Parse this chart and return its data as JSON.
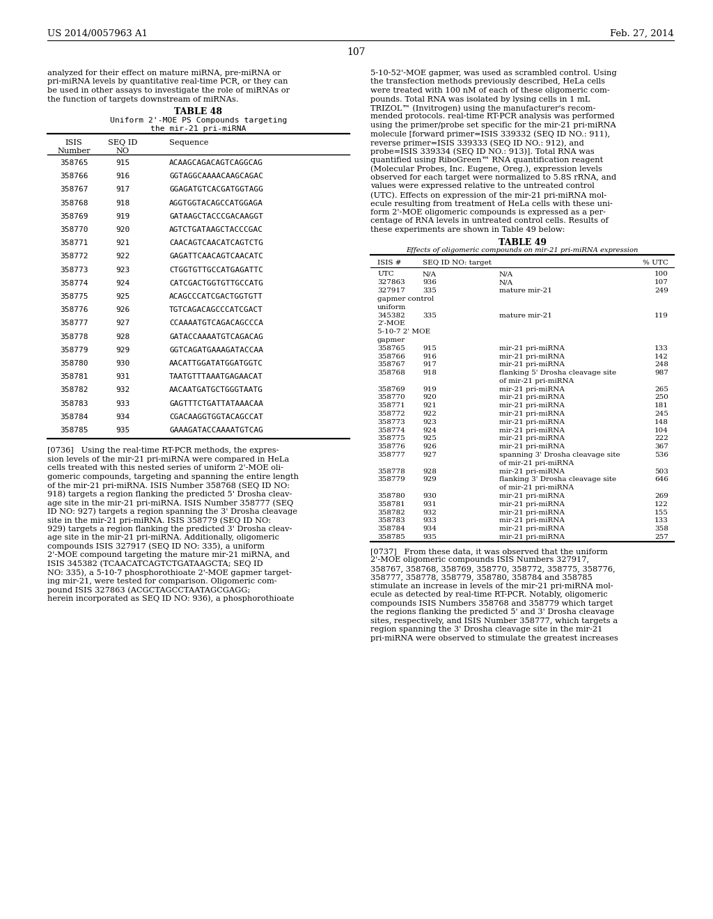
{
  "page_header_left": "US 2014/0057963 A1",
  "page_header_right": "Feb. 27, 2014",
  "page_number": "107",
  "left_top_para": "analyzed for their effect on mature miRNA, pre-miRNA or\npri-miRNA levels by quantitative real-time PCR, or they can\nbe used in other assays to investigate the role of miRNAs or\nthe function of targets downstream of miRNAs.",
  "table48_title": "TABLE 48",
  "table48_subtitle1": "Uniform 2'-MOE PS Compounds targeting",
  "table48_subtitle2": "the mir-21 pri-miRNA",
  "table48_col1_hdr1": "ISIS",
  "table48_col1_hdr2": "Number",
  "table48_col2_hdr1": "SEQ ID",
  "table48_col2_hdr2": "NO",
  "table48_col3_hdr": "Sequence",
  "table48_rows": [
    [
      "358765",
      "915",
      "ACAAGCAGACAGTCAGGCAG"
    ],
    [
      "358766",
      "916",
      "GGTAGGCAAAACAAGCAGAC"
    ],
    [
      "358767",
      "917",
      "GGAGATGTCACGATGGTAGG"
    ],
    [
      "358768",
      "918",
      "AGGTGGTACAGCCATGGAGA"
    ],
    [
      "358769",
      "919",
      "GATAAGCTACCCGACAAGGT"
    ],
    [
      "358770",
      "920",
      "AGTCTGATAAGCTACCCGAC"
    ],
    [
      "358771",
      "921",
      "CAACAGTCAACATCAGTCTG"
    ],
    [
      "358772",
      "922",
      "GAGATTCAACAGTCAACATC"
    ],
    [
      "358773",
      "923",
      "CTGGTGTTGCCATGAGATTC"
    ],
    [
      "358774",
      "924",
      "CATCGACTGGTGTTGCCATG"
    ],
    [
      "358775",
      "925",
      "ACAGCCCATCGACTGGTGTT"
    ],
    [
      "358776",
      "926",
      "TGTCAGACAGCCCATCGACT"
    ],
    [
      "358777",
      "927",
      "CCAAAATGTCAGACAGCCCA"
    ],
    [
      "358778",
      "928",
      "GATACCAAAATGTCAGACAG"
    ],
    [
      "358779",
      "929",
      "GGTCAGATGAAAGATACCAA"
    ],
    [
      "358780",
      "930",
      "AACATTGGATATGGATGGTC"
    ],
    [
      "358781",
      "931",
      "TAATGTTTAAATGAGAACAT"
    ],
    [
      "358782",
      "932",
      "AACAATGATGCTGGGTAATG"
    ],
    [
      "358783",
      "933",
      "GAGTTTCTGATTATAAACAA"
    ],
    [
      "358784",
      "934",
      "CGACAAGGTGGTACAGCCAT"
    ],
    [
      "358785",
      "935",
      "GAAAGATACCAAAATGTCAG"
    ]
  ],
  "left_para_0736_lines": [
    "[0736]   Using the real-time RT-PCR methods, the expres-",
    "sion levels of the mir-21 pri-miRNA were compared in HeLa",
    "cells treated with this nested series of uniform 2'-MOE oli-",
    "gomeric compounds, targeting and spanning the entire length",
    "of the mir-21 pri-miRNA. ISIS Number 358768 (SEQ ID NO:",
    "918) targets a region flanking the predicted 5' Drosha cleav-",
    "age site in the mir-21 pri-miRNA. ISIS Number 358777 (SEQ",
    "ID NO: 927) targets a region spanning the 3' Drosha cleavage",
    "site in the mir-21 pri-miRNA. ISIS 358779 (SEQ ID NO:",
    "929) targets a region flanking the predicted 3' Drosha cleav-",
    "age site in the mir-21 pri-miRNA. Additionally, oligomeric",
    "compounds ISIS 327917 (SEQ ID NO: 335), a uniform",
    "2'-MOE compound targeting the mature mir-21 miRNA, and",
    "ISIS 345382 (TCAACATCAGTCTGATAAGCTA; SEQ ID",
    "NO: 335), a 5-10-7 phosphorothioate 2'-MOE gapmer target-",
    "ing mir-21, were tested for comparison. Oligomeric com-",
    "pound ISIS 327863 (ACGCTAGCCTAATAGCGAGG;",
    "herein incorporated as SEQ ID NO: 936), a phosphorothioate"
  ],
  "right_top_para_lines": [
    "5-10-52'-MOE gapmer, was used as scrambled control. Using",
    "the transfection methods previously described, HeLa cells",
    "were treated with 100 nM of each of these oligomeric com-",
    "pounds. Total RNA was isolated by lysing cells in 1 mL",
    "TRIZOL™ (Invitrogen) using the manufacturer's recom-",
    "mended protocols. real-time RT-PCR analysis was performed",
    "using the primer/probe set specific for the mir-21 pri-miRNA",
    "molecule [forward primer=ISIS 339332 (SEQ ID NO.: 911),",
    "reverse primer=ISIS 339333 (SEQ ID NO.: 912), and",
    "probe=ISIS 339334 (SEQ ID NO.: 913)]. Total RNA was",
    "quantified using RiboGreen™ RNA quantification reagent",
    "(Molecular Probes, Inc. Eugene, Oreg.), expression levels",
    "observed for each target were normalized to 5.8S rRNA, and",
    "values were expressed relative to the untreated control",
    "(UTC). Effects on expression of the mir-21 pri-miRNA mol-",
    "ecule resulting from treatment of HeLa cells with these uni-",
    "form 2'-MOE oligomeric compounds is expressed as a per-",
    "centage of RNA levels in untreated control cells. Results of",
    "these experiments are shown in Table 49 below:"
  ],
  "table49_title": "TABLE 49",
  "table49_subtitle": "Effects of oligomeric compounds on mir-21 pri-miRNA expression",
  "table49_col_headers": [
    "ISIS #",
    "SEQ ID NO: target",
    "% UTC"
  ],
  "table49_rows": [
    [
      "UTC",
      "N/A",
      "N/A",
      "100"
    ],
    [
      "327863",
      "936",
      "N/A",
      "107"
    ],
    [
      "327917",
      "335",
      "mature mir-21",
      "249"
    ],
    [
      "gapmer control",
      "",
      "",
      ""
    ],
    [
      "uniform",
      "",
      "",
      ""
    ],
    [
      "345382",
      "335",
      "mature mir-21",
      "119"
    ],
    [
      "2'-MOE",
      "",
      "",
      ""
    ],
    [
      "5-10-7 2' MOE",
      "",
      "",
      ""
    ],
    [
      "gapmer",
      "",
      "",
      ""
    ],
    [
      "358765",
      "915",
      "mir-21 pri-miRNA",
      "133"
    ],
    [
      "358766",
      "916",
      "mir-21 pri-miRNA",
      "142"
    ],
    [
      "358767",
      "917",
      "mir-21 pri-miRNA",
      "248"
    ],
    [
      "358768",
      "918",
      "flanking 5' Drosha cleavage site",
      "987"
    ],
    [
      "",
      "",
      "of mir-21 pri-miRNA",
      ""
    ],
    [
      "358769",
      "919",
      "mir-21 pri-miRNA",
      "265"
    ],
    [
      "358770",
      "920",
      "mir-21 pri-miRNA",
      "250"
    ],
    [
      "358771",
      "921",
      "mir-21 pri-miRNA",
      "181"
    ],
    [
      "358772",
      "922",
      "mir-21 pri-miRNA",
      "245"
    ],
    [
      "358773",
      "923",
      "mir-21 pri-miRNA",
      "148"
    ],
    [
      "358774",
      "924",
      "mir-21 pri-miRNA",
      "104"
    ],
    [
      "358775",
      "925",
      "mir-21 pri-miRNA",
      "222"
    ],
    [
      "358776",
      "926",
      "mir-21 pri-miRNA",
      "367"
    ],
    [
      "358777",
      "927",
      "spanning 3' Drosha cleavage site",
      "536"
    ],
    [
      "",
      "",
      "of mir-21 pri-miRNA",
      ""
    ],
    [
      "358778",
      "928",
      "mir-21 pri-miRNA",
      "503"
    ],
    [
      "358779",
      "929",
      "flanking 3' Drosha cleavage site",
      "646"
    ],
    [
      "",
      "",
      "of mir-21 pri-miRNA",
      ""
    ],
    [
      "358780",
      "930",
      "mir-21 pri-miRNA",
      "269"
    ],
    [
      "358781",
      "931",
      "mir-21 pri-miRNA",
      "122"
    ],
    [
      "358782",
      "932",
      "mir-21 pri-miRNA",
      "155"
    ],
    [
      "358783",
      "933",
      "mir-21 pri-miRNA",
      "133"
    ],
    [
      "358784",
      "934",
      "mir-21 pri-miRNA",
      "358"
    ],
    [
      "358785",
      "935",
      "mir-21 pri-miRNA",
      "257"
    ]
  ],
  "right_para_0737_lines": [
    "[0737]   From these data, it was observed that the uniform",
    "2'-MOE oligomeric compounds ISIS Numbers 327917,",
    "358767, 358768, 358769, 358770, 358772, 358775, 358776,",
    "358777, 358778, 358779, 358780, 358784 and 358785",
    "stimulate an increase in levels of the mir-21 pri-miRNA mol-",
    "ecule as detected by real-time RT-PCR. Notably, oligomeric",
    "compounds ISIS Numbers 358768 and 358779 which target",
    "the regions flanking the predicted 5' and 3' Drosha cleavage",
    "sites, respectively, and ISIS Number 358777, which targets a",
    "region spanning the 3' Drosha cleavage site in the mir-21",
    "pri-miRNA were observed to stimulate the greatest increases"
  ]
}
